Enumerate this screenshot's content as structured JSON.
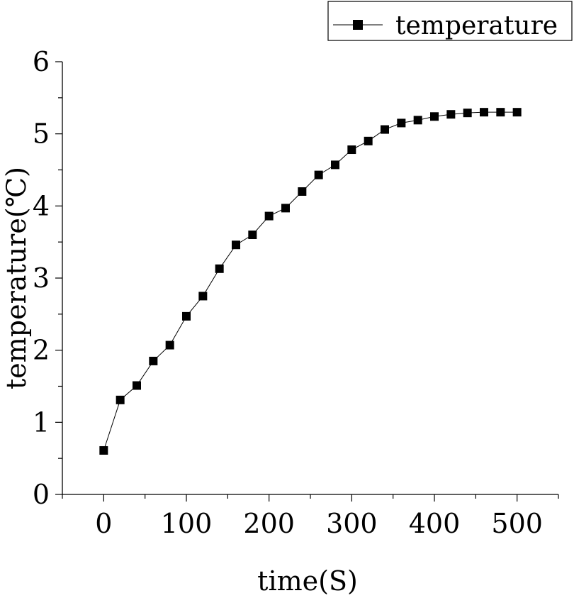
{
  "chart_data": {
    "type": "line",
    "title": "",
    "xlabel": "time(S)",
    "ylabel": "temperature(℃)",
    "xlim": [
      -50,
      550
    ],
    "ylim": [
      0,
      6
    ],
    "xticks": [
      0,
      100,
      200,
      300,
      400,
      500
    ],
    "yticks": [
      0,
      1,
      2,
      3,
      4,
      5,
      6
    ],
    "grid": false,
    "legend_position": "top-right",
    "marker": "square",
    "series": [
      {
        "name": "temperature",
        "color": "#000000",
        "x": [
          0,
          20,
          40,
          60,
          80,
          100,
          120,
          140,
          160,
          180,
          200,
          220,
          240,
          260,
          280,
          300,
          320,
          340,
          360,
          380,
          400,
          420,
          440,
          460,
          480,
          500
        ],
        "y": [
          0.61,
          1.31,
          1.51,
          1.85,
          2.07,
          2.47,
          2.75,
          3.13,
          3.46,
          3.6,
          3.86,
          3.97,
          4.2,
          4.43,
          4.57,
          4.78,
          4.9,
          5.06,
          5.15,
          5.19,
          5.24,
          5.27,
          5.29,
          5.3,
          5.3,
          5.3
        ]
      }
    ]
  }
}
